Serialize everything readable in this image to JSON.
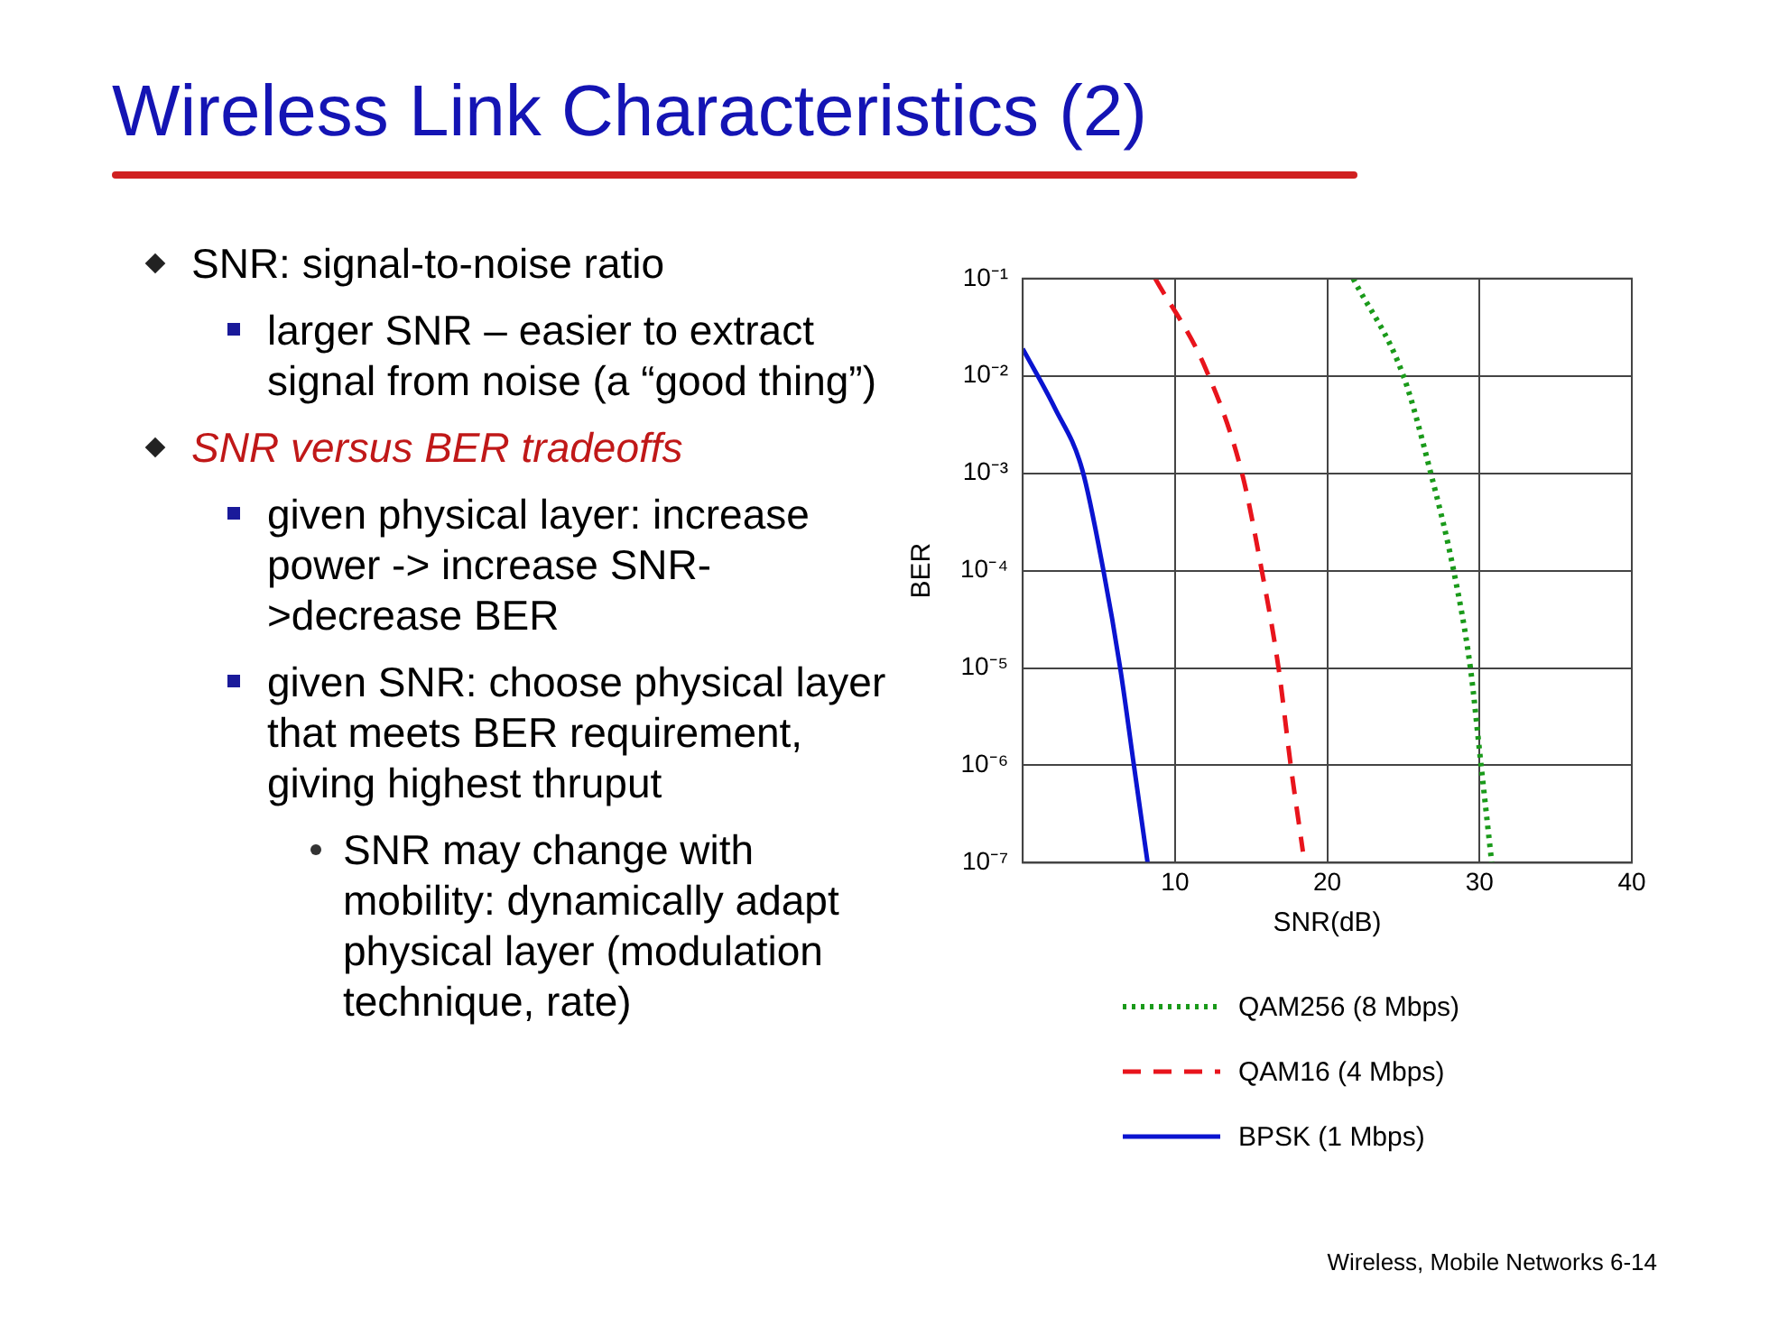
{
  "chart_data": {
    "type": "line",
    "title": "Wireless Link Characteristics (2)",
    "xlabel": "SNR(dB)",
    "ylabel": "BER",
    "annotations": [
      "SNR: signal-to-noise ratio",
      "larger SNR – easier to extract signal from noise (a “good thing”)",
      "SNR versus BER tradeoffs",
      "given physical layer: increase power -> increase SNR->decrease BER",
      "given SNR: choose physical layer that meets BER requirement, giving highest thruput",
      "SNR may change with mobility: dynamically adapt physical layer (modulation technique, rate)",
      "Wireless, Mobile Networks 6-14"
    ],
    "series": [
      {
        "name": "QAM256 (8 Mbps)",
        "color": "#1a9a1a",
        "line_style": "dotted",
        "x": [
          21.7,
          25,
          26.8,
          28.3,
          29.4,
          30.1,
          30.8
        ],
        "values": [
          0.1,
          0.01,
          0.001,
          0.0001,
          1e-05,
          1e-06,
          1e-07
        ]
      },
      {
        "name": "QAM16 (4 Mbps)",
        "color": "#e8141c",
        "line_style": "dashed",
        "x": [
          8.7,
          12,
          14.4,
          15.7,
          16.8,
          17.6,
          18.4
        ],
        "values": [
          0.1,
          0.012,
          0.001,
          0.0001,
          1e-05,
          1e-06,
          1.3e-07
        ]
      },
      {
        "name": "BPSK (1 Mbps)",
        "color": "#0a14d0",
        "line_style": "solid",
        "x": [
          0,
          2.1,
          3.9,
          5.3,
          6.4,
          7.3,
          8.2
        ],
        "values": [
          0.019,
          0.0047,
          0.0011,
          0.0001,
          1e-05,
          1e-06,
          1e-07
        ]
      }
    ],
    "xlim": [
      0,
      40
    ],
    "xticks": [
      10,
      20,
      30,
      40
    ],
    "ylim": [
      1e-07,
      0.1
    ],
    "yticks": [
      {
        "value": 1e-07,
        "label": "10⁻⁷"
      },
      {
        "value": 1e-06,
        "label": "10⁻⁶"
      },
      {
        "value": 1e-05,
        "label": "10⁻⁵"
      },
      {
        "value": 0.0001,
        "label": "10⁻⁴"
      },
      {
        "value": 0.001,
        "label": "10⁻³"
      },
      {
        "value": 0.01,
        "label": "10⁻²"
      },
      {
        "value": 0.1,
        "label": "10⁻¹"
      }
    ],
    "log": "y",
    "grid": true,
    "legend": "bottom",
    "marker": "none"
  }
}
